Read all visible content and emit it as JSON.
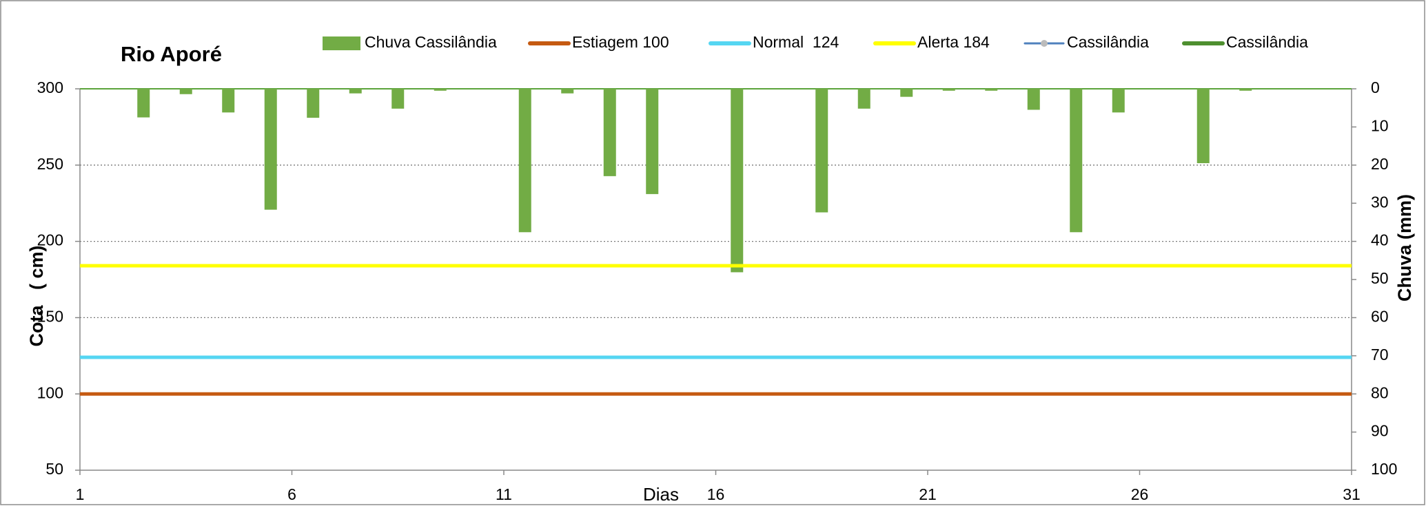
{
  "chart_data": {
    "type": "combo",
    "title": "Rio Aporé",
    "x_label": "Dias",
    "y_label": "Cota   ( cm)",
    "y2_label": "Chuva (mm)",
    "x": [
      1,
      2,
      3,
      4,
      5,
      6,
      7,
      8,
      9,
      10,
      11,
      12,
      13,
      14,
      15,
      16,
      17,
      18,
      19,
      20,
      21,
      22,
      23,
      24,
      25,
      26,
      27,
      28,
      29,
      30,
      31
    ],
    "xlim": [
      1,
      31
    ],
    "xticks": [
      1,
      6,
      11,
      16,
      21,
      26,
      31
    ],
    "ylim": [
      50,
      300
    ],
    "yticks": [
      50,
      100,
      150,
      200,
      250,
      300
    ],
    "y2lim": [
      100,
      0
    ],
    "y2ticks": [
      0,
      10,
      20,
      30,
      40,
      50,
      60,
      70,
      80,
      90,
      100
    ],
    "grid": true,
    "series": [
      {
        "name": "Chuva Cassilândia",
        "kind": "bar",
        "axis": "y2",
        "color": "#72ac45",
        "values": [
          0,
          7.5,
          1.4,
          6.2,
          31.7,
          7.6,
          1.2,
          5.2,
          0.5,
          0,
          37.6,
          1.2,
          22.9,
          27.6,
          0,
          48.1,
          0,
          32.4,
          5.2,
          2.1,
          0.5,
          0.5,
          5.5,
          37.6,
          6.2,
          0,
          19.5,
          0.5,
          0,
          0,
          null
        ]
      },
      {
        "name": "Estiagem 100",
        "kind": "line",
        "color": "#c55a11",
        "values": [
          100,
          100,
          100,
          100,
          100,
          100,
          100,
          100,
          100,
          100,
          100,
          100,
          100,
          100,
          100,
          100,
          100,
          100,
          100,
          100,
          100,
          100,
          100,
          100,
          100,
          100,
          100,
          100,
          100,
          100,
          100
        ]
      },
      {
        "name": "Normal  124",
        "kind": "line",
        "color": "#55d6f2",
        "values": [
          124,
          124,
          124,
          124,
          124,
          124,
          124,
          124,
          124,
          124,
          124,
          124,
          124,
          124,
          124,
          124,
          124,
          124,
          124,
          124,
          124,
          124,
          124,
          124,
          124,
          124,
          124,
          124,
          124,
          124,
          124
        ]
      },
      {
        "name": "Alerta 184",
        "kind": "line",
        "color": "#ffff00",
        "values": [
          184,
          184,
          184,
          184,
          184,
          184,
          184,
          184,
          184,
          184,
          184,
          184,
          184,
          184,
          184,
          184,
          184,
          184,
          184,
          184,
          184,
          184,
          184,
          184,
          184,
          184,
          184,
          184,
          184,
          184,
          184
        ]
      },
      {
        "name": "Cassilândia",
        "kind": "marker-line",
        "color": "#4f81bd",
        "values": [
          null,
          null,
          null,
          null,
          null,
          null,
          null,
          null,
          null,
          null,
          null,
          null,
          null,
          null,
          null,
          null,
          null,
          null,
          null,
          null,
          null,
          null,
          null,
          null,
          null,
          null,
          null,
          null,
          null,
          null,
          null
        ]
      },
      {
        "name": "Cassilândia",
        "kind": "line",
        "color": "#4e8f2f",
        "values": [
          null,
          null,
          null,
          null,
          null,
          null,
          null,
          null,
          null,
          null,
          null,
          null,
          null,
          null,
          null,
          null,
          null,
          null,
          null,
          null,
          null,
          null,
          null,
          null,
          null,
          null,
          null,
          null,
          null,
          null,
          null
        ]
      }
    ]
  }
}
